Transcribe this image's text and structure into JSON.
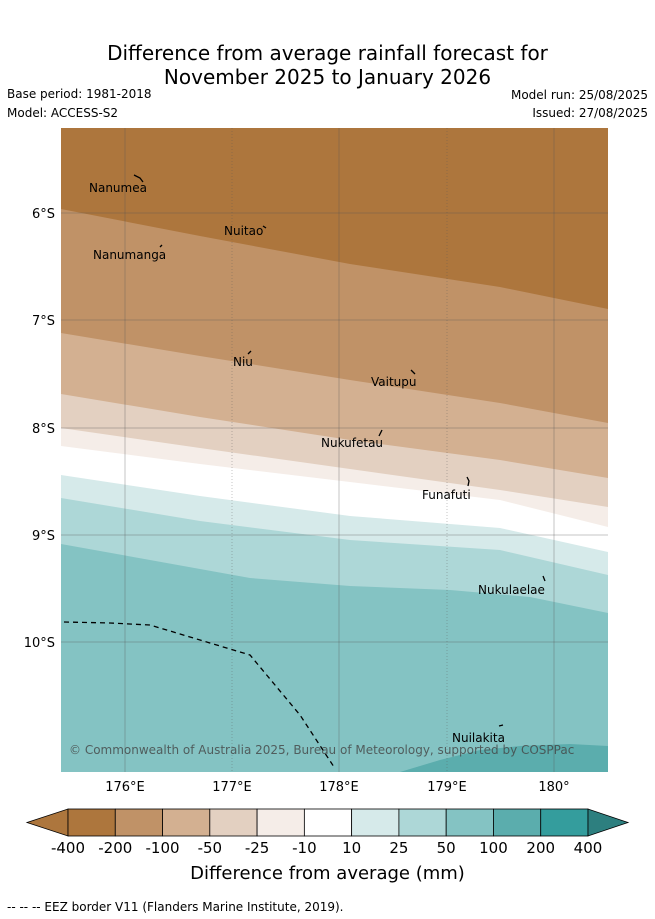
{
  "title_line1": "Difference from average rainfall forecast for",
  "title_line2": "November 2025 to January 2026",
  "meta": {
    "base_period": "Base period: 1981-2018",
    "model": "Model: ACCESS-S2",
    "model_run": "Model run: 25/08/2025",
    "issued": "Issued: 27/08/2025"
  },
  "map": {
    "lat_labels": [
      "6°S",
      "7°S",
      "8°S",
      "9°S",
      "10°S"
    ],
    "lon_labels": [
      "176°E",
      "177°E",
      "178°E",
      "179°E",
      "180°"
    ],
    "places": [
      {
        "name": "Nanumea"
      },
      {
        "name": "Nuitao"
      },
      {
        "name": "Nanumanga"
      },
      {
        "name": "Niu"
      },
      {
        "name": "Vaitupu"
      },
      {
        "name": "Nukufetau"
      },
      {
        "name": "Funafuti"
      },
      {
        "name": "Nukulaelae"
      },
      {
        "name": "Nuilakita"
      }
    ],
    "copyright": "© Commonwealth of Australia 2025, Bureau of Meteorology, supported by COSPPac"
  },
  "colorbar": {
    "ticks": [
      "-400",
      "-200",
      "-100",
      "-50",
      "-25",
      "-10",
      "10",
      "25",
      "50",
      "100",
      "200",
      "400"
    ],
    "colors": [
      "#ad763d",
      "#ad763d",
      "#c09267",
      "#d3b091",
      "#e3d0c1",
      "#f5ede8",
      "#ffffff",
      "#d6eaea",
      "#add7d7",
      "#84c3c3",
      "#5badad",
      "#349d9d",
      "#2d7f7f"
    ],
    "label": "Difference from average (mm)"
  },
  "footer": "--  --  -- EEZ border V11 (Flanders Marine Institute, 2019)."
}
